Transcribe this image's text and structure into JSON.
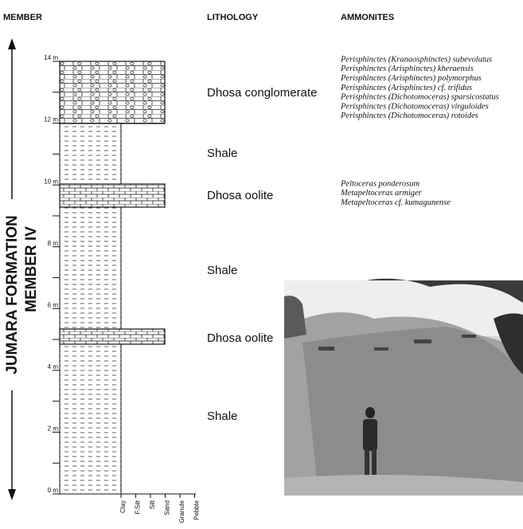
{
  "headers": {
    "member": "MEMBER",
    "lithology": "LITHOLOGY",
    "ammonites": "AMMONITES"
  },
  "formation": {
    "name": "JUMARA FORMATION",
    "member": "MEMBER IV"
  },
  "scale": [
    "0 m",
    "2 m",
    "4 m",
    "6 m",
    "8 m",
    "10 m",
    "12 m",
    "14 m"
  ],
  "lithology": [
    "Dhosa conglomerate",
    "Shale",
    "Dhosa oolite",
    "Shale",
    "Dhosa oolite",
    "Shale"
  ],
  "ammonites": [
    [
      "Perisphinctes (Kranaosphinctes) subevolutus",
      "Perisphinctes (Arisphinctes) kheraensis",
      "Perisphinctes (Arisphinctes) polymorphus",
      "Perisphinctes (Arisphinctes) cf. trifidus",
      "Perisphinctes (Dichotomoceras) sparsicostatus",
      "Perisphinctes (Dichotomoceras) virguloides",
      "Perisphinctes (Dichotomoceras) rotoides"
    ],
    [
      "Peltoceras ponderosum",
      "Metapeltoceras armiger",
      "Metapeltoceras cf. kumagunense"
    ]
  ],
  "grain_size": [
    "Clay",
    "F.Silt",
    "Silt",
    "Sand",
    "Granule",
    "Pebble"
  ]
}
